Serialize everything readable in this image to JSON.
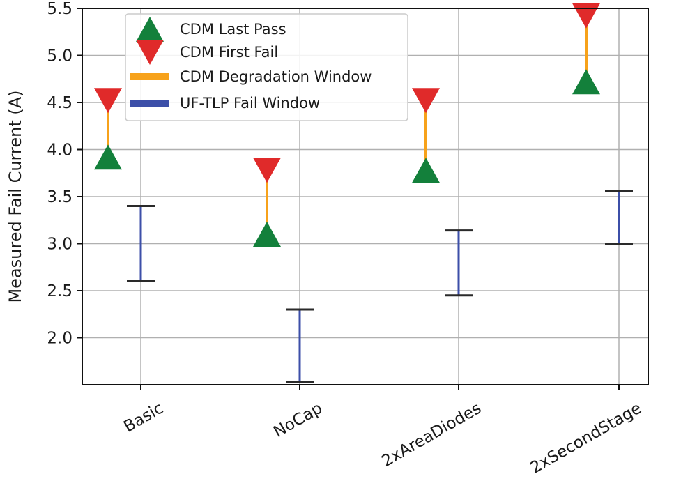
{
  "chart_data": {
    "type": "errorbar",
    "ylabel": "Measured Fail Current (A)",
    "xlabel": "",
    "ylim": [
      1.5,
      5.5
    ],
    "yticks": [
      "2.0",
      "2.5",
      "3.0",
      "3.5",
      "4.0",
      "4.5",
      "5.0",
      "5.5"
    ],
    "grid": true,
    "legend_position": "upper-left",
    "categories": [
      "Basic",
      "NoCap",
      "2xAreaDiodes",
      "2xSecondStage"
    ],
    "series": [
      {
        "name": "CDM Last Pass",
        "marker": "triangle-up",
        "color": "#13803b",
        "values": [
          3.92,
          3.1,
          3.78,
          4.72
        ]
      },
      {
        "name": "CDM First Fail",
        "marker": "triangle-down",
        "color": "#e02a2a",
        "values": [
          4.52,
          3.78,
          4.52,
          5.42
        ]
      },
      {
        "name": "CDM Degradation Window",
        "marker": "bar",
        "color": "#f7a21b",
        "low": [
          3.92,
          3.1,
          3.78,
          4.72
        ],
        "high": [
          4.52,
          3.78,
          4.52,
          5.42
        ]
      },
      {
        "name": "UF-TLP Fail Window",
        "marker": "bar",
        "color": "#3c4fa8",
        "low": [
          2.6,
          1.53,
          2.45,
          3.0
        ],
        "high": [
          3.4,
          2.3,
          3.14,
          3.56
        ]
      }
    ]
  }
}
